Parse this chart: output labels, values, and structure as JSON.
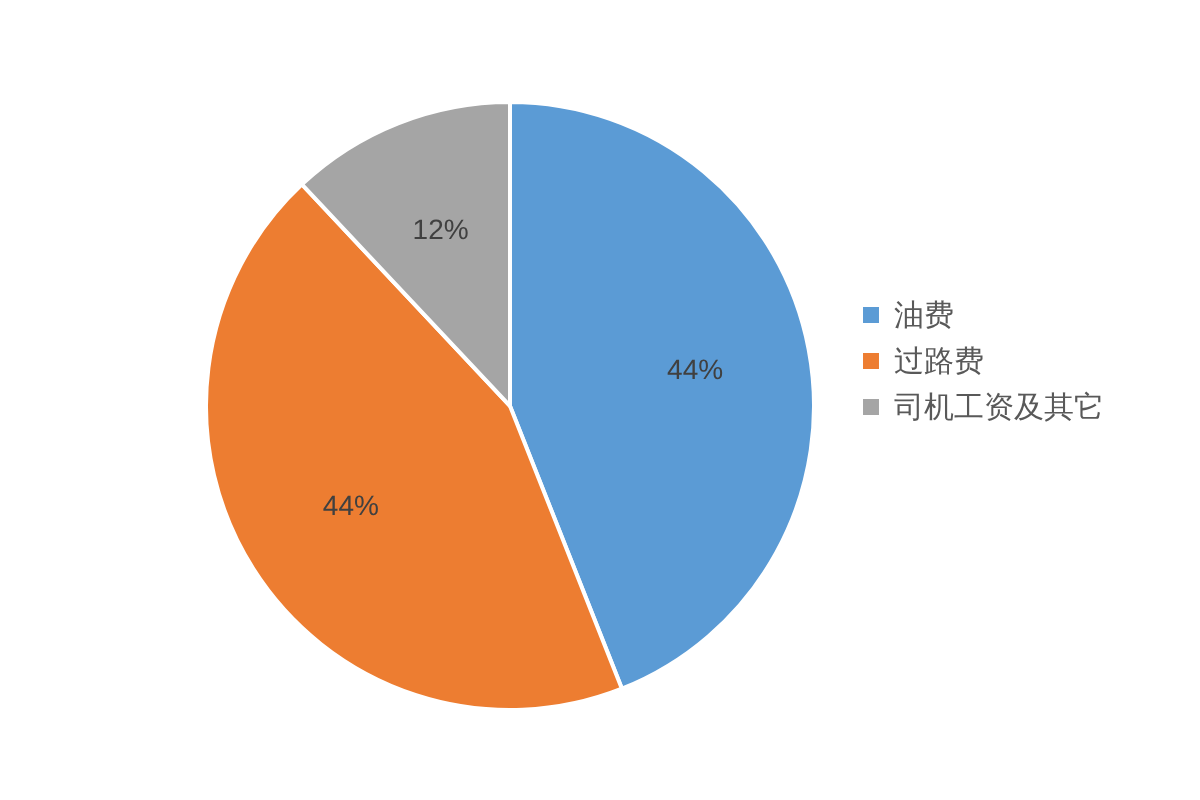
{
  "chart_data": {
    "type": "pie",
    "categories": [
      "油费",
      "过路费",
      "司机工资及其它"
    ],
    "values": [
      44,
      44,
      12
    ],
    "colors": [
      "#5b9bd5",
      "#ed7d31",
      "#a5a5a5"
    ],
    "value_labels": [
      "44%",
      "44%",
      "12%"
    ],
    "legend": "right"
  }
}
